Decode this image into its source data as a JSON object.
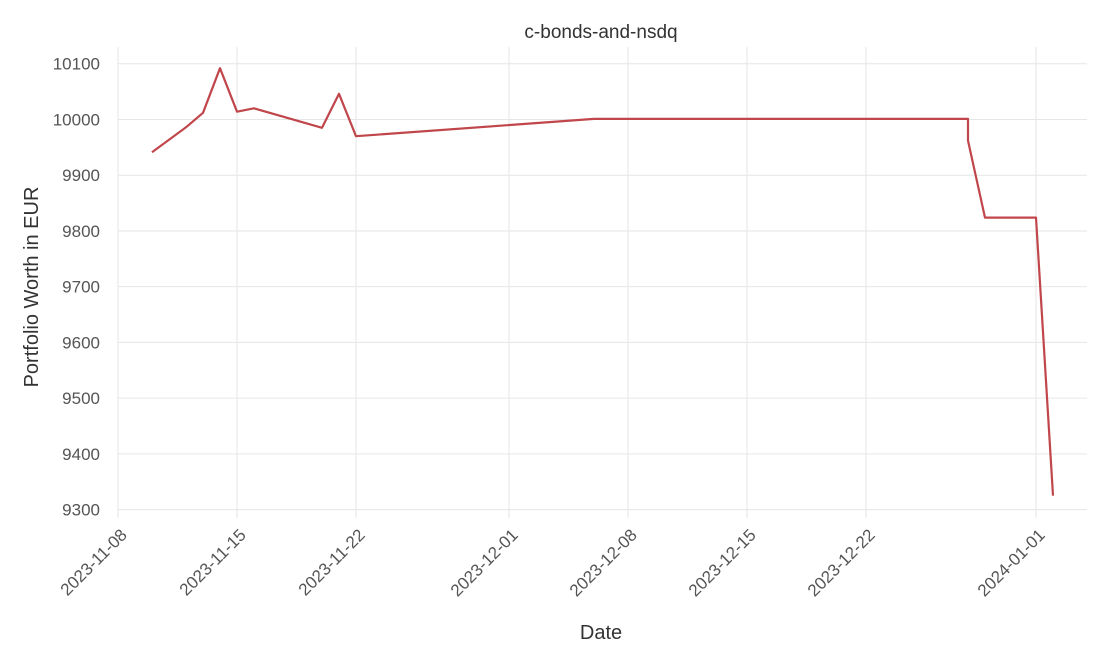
{
  "chart_data": {
    "type": "line",
    "title": "c-bonds-and-nsdq",
    "xlabel": "Date",
    "ylabel": "Portfolio Worth in EUR",
    "x_ticks": [
      "2023-11-08",
      "2023-11-15",
      "2023-11-22",
      "2023-12-01",
      "2023-12-08",
      "2023-12-15",
      "2023-12-22",
      "2024-01-01"
    ],
    "y_ticks": [
      9300,
      9400,
      9500,
      9600,
      9700,
      9800,
      9900,
      10000,
      10100
    ],
    "xlim": [
      "2023-11-08",
      "2024-01-04"
    ],
    "ylim": [
      9285,
      10130
    ],
    "grid": true,
    "series": [
      {
        "color": "#c0464b",
        "points": [
          {
            "x": "2023-11-10",
            "y": 9941
          },
          {
            "x": "2023-11-12",
            "y": 9986
          },
          {
            "x": "2023-11-13",
            "y": 10012
          },
          {
            "x": "2023-11-14",
            "y": 10092
          },
          {
            "x": "2023-11-15",
            "y": 10014
          },
          {
            "x": "2023-11-16",
            "y": 10020
          },
          {
            "x": "2023-11-20",
            "y": 9985
          },
          {
            "x": "2023-11-21",
            "y": 10046
          },
          {
            "x": "2023-11-22",
            "y": 9970
          },
          {
            "x": "2023-12-06",
            "y": 10001
          },
          {
            "x": "2023-12-28",
            "y": 10001
          },
          {
            "x": "2023-12-28",
            "y": 9962
          },
          {
            "x": "2023-12-29",
            "y": 9824
          },
          {
            "x": "2024-01-01",
            "y": 9824
          },
          {
            "x": "2024-01-02",
            "y": 9325
          }
        ]
      }
    ]
  }
}
